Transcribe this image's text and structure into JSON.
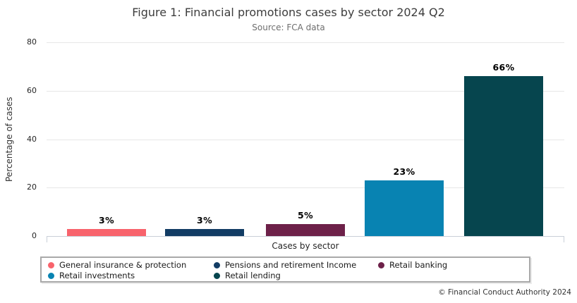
{
  "chart_data": {
    "type": "bar",
    "title": "Figure 1: Financial promotions cases by sector 2024 Q2",
    "subtitle": "Source: FCA data",
    "xlabel": "Cases by sector",
    "ylabel": "Percentage of cases",
    "ylim": [
      0,
      80
    ],
    "yticks": [
      0,
      20,
      40,
      60,
      80
    ],
    "grid": "horizontal",
    "legend_position": "bottom",
    "categories": [
      "General insurance & protection",
      "Pensions and retirement Income",
      "Retail banking",
      "Retail investments",
      "Retail lending"
    ],
    "values": [
      3,
      3,
      5,
      23,
      66
    ],
    "value_labels": [
      "3%",
      "3%",
      "5%",
      "23%",
      "66%"
    ],
    "colors": [
      "#F8636C",
      "#123C64",
      "#6D2149",
      "#0883B2",
      "#06454E"
    ],
    "legend": {
      "items": [
        {
          "label": "General insurance & protection",
          "color": "#F8636C"
        },
        {
          "label": "Pensions and retirement Income",
          "color": "#123C64"
        },
        {
          "label": "Retail banking",
          "color": "#6D2149"
        },
        {
          "label": "Retail investments",
          "color": "#0883B2"
        },
        {
          "label": "Retail lending",
          "color": "#06454E"
        }
      ]
    },
    "footer": "© Financial Conduct Authority 2024"
  }
}
